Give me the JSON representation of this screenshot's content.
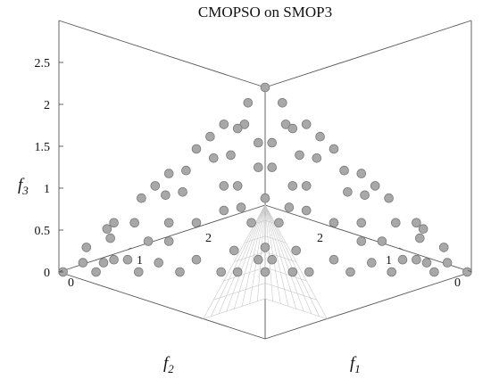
{
  "chart_data": {
    "type": "scatter",
    "projection": "3d",
    "title": "CMOPSO on SMOP3",
    "axes": {
      "x": {
        "label": "f",
        "subscript": "1",
        "ticks": [
          0,
          1,
          2
        ]
      },
      "y": {
        "label": "f",
        "subscript": "2",
        "ticks": [
          0,
          1,
          2
        ]
      },
      "z": {
        "label": "f",
        "subscript": "3",
        "ticks": [
          0,
          0.5,
          1,
          1.5,
          2,
          2.5
        ]
      }
    },
    "reference_surface": "true Pareto front (wireframe)",
    "series": [
      {
        "marker": "circle",
        "color": "#a8a8a8",
        "edge_color": "#7a7a7a",
        "points": [
          [
            2.97,
            0.03,
            0.0
          ],
          [
            0.03,
            2.97,
            0.0
          ],
          [
            0.0,
            0.0,
            3.0
          ],
          [
            2.73,
            0.27,
            0.0
          ],
          [
            2.42,
            0.58,
            0.0
          ],
          [
            2.12,
            0.88,
            0.0
          ],
          [
            1.82,
            1.18,
            0.0
          ],
          [
            1.5,
            1.5,
            0.0
          ],
          [
            1.18,
            1.82,
            0.0
          ],
          [
            0.88,
            2.12,
            0.0
          ],
          [
            0.58,
            2.42,
            0.0
          ],
          [
            0.27,
            2.73,
            0.0
          ],
          [
            2.6,
            0.0,
            0.4
          ],
          [
            2.2,
            0.0,
            0.8
          ],
          [
            1.8,
            0.0,
            1.2
          ],
          [
            1.4,
            0.0,
            1.6
          ],
          [
            1.0,
            0.0,
            2.0
          ],
          [
            0.6,
            0.0,
            2.4
          ],
          [
            0.25,
            0.0,
            2.75
          ],
          [
            0.0,
            2.6,
            0.4
          ],
          [
            0.0,
            2.2,
            0.8
          ],
          [
            0.0,
            1.8,
            1.2
          ],
          [
            0.0,
            1.4,
            1.6
          ],
          [
            0.0,
            1.0,
            2.0
          ],
          [
            0.0,
            0.6,
            2.4
          ],
          [
            0.0,
            0.25,
            2.75
          ],
          [
            2.5,
            0.3,
            0.2
          ],
          [
            2.1,
            0.4,
            0.5
          ],
          [
            1.9,
            0.9,
            0.2
          ],
          [
            1.6,
            0.6,
            0.8
          ],
          [
            1.3,
            1.3,
            0.4
          ],
          [
            1.1,
            0.5,
            1.4
          ],
          [
            0.8,
            0.3,
            1.9
          ],
          [
            0.5,
            0.4,
            2.1
          ],
          [
            0.9,
            0.9,
            1.2
          ],
          [
            1.2,
            1.0,
            0.8
          ],
          [
            0.3,
            2.5,
            0.2
          ],
          [
            0.4,
            2.1,
            0.5
          ],
          [
            0.9,
            1.9,
            0.2
          ],
          [
            0.6,
            1.6,
            0.8
          ],
          [
            0.5,
            1.1,
            1.4
          ],
          [
            0.3,
            0.8,
            1.9
          ],
          [
            0.4,
            0.5,
            2.1
          ],
          [
            1.0,
            1.2,
            0.8
          ],
          [
            0.7,
            1.3,
            1.0
          ],
          [
            1.3,
            0.7,
            1.0
          ],
          [
            2.3,
            0.0,
            0.7
          ],
          [
            1.6,
            0.0,
            1.4
          ],
          [
            0.0,
            2.3,
            0.7
          ],
          [
            0.0,
            1.6,
            1.4
          ],
          [
            0.8,
            0.0,
            2.2
          ],
          [
            0.0,
            0.8,
            2.2
          ],
          [
            1.7,
            1.3,
            0.0
          ],
          [
            1.3,
            1.7,
            0.0
          ],
          [
            2.4,
            0.4,
            0.2
          ],
          [
            0.4,
            2.4,
            0.2
          ],
          [
            1.95,
            0.55,
            0.5
          ],
          [
            0.55,
            1.95,
            0.5
          ],
          [
            1.45,
            0.25,
            1.3
          ],
          [
            0.25,
            1.45,
            1.3
          ],
          [
            1.55,
            1.1,
            0.35
          ],
          [
            1.1,
            1.55,
            0.35
          ],
          [
            0.7,
            0.6,
            1.7
          ],
          [
            0.6,
            0.7,
            1.7
          ],
          [
            2.05,
            0.15,
            0.8
          ],
          [
            0.15,
            2.05,
            0.8
          ],
          [
            1.25,
            0.1,
            1.65
          ],
          [
            0.1,
            1.25,
            1.65
          ],
          [
            0.45,
            0.15,
            2.4
          ],
          [
            0.15,
            0.45,
            2.4
          ],
          [
            2.6,
            0.25,
            0.15
          ],
          [
            0.25,
            2.6,
            0.15
          ],
          [
            1.0,
            0.6,
            1.4
          ],
          [
            0.6,
            1.0,
            1.4
          ],
          [
            1.8,
            0.4,
            0.8
          ],
          [
            0.4,
            1.8,
            0.8
          ],
          [
            2.2,
            0.65,
            0.15
          ],
          [
            0.65,
            2.2,
            0.15
          ],
          [
            1.6,
            0.15,
            1.25
          ],
          [
            0.15,
            1.6,
            1.25
          ],
          [
            1.35,
            1.45,
            0.2
          ],
          [
            1.45,
            1.35,
            0.2
          ],
          [
            0.95,
            0.2,
            1.85
          ],
          [
            0.2,
            0.95,
            1.85
          ],
          [
            2.35,
            0.1,
            0.55
          ],
          [
            0.1,
            2.35,
            0.55
          ],
          [
            1.15,
            0.8,
            1.05
          ],
          [
            0.8,
            1.15,
            1.05
          ],
          [
            0.5,
            0.1,
            2.35
          ],
          [
            0.1,
            0.5,
            2.35
          ],
          [
            2.75,
            0.1,
            0.15
          ],
          [
            0.1,
            2.75,
            0.15
          ]
        ]
      }
    ]
  }
}
